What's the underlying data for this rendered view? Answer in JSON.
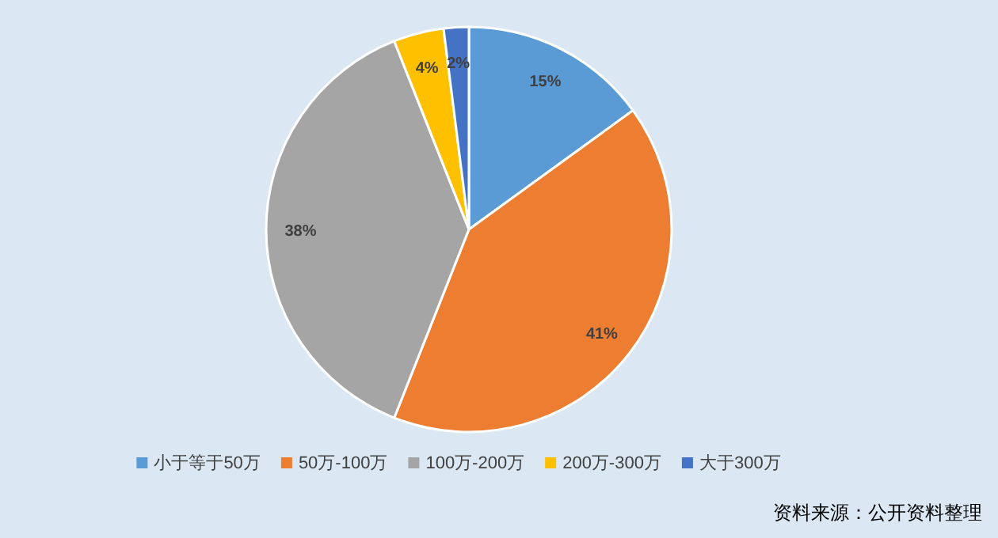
{
  "chart_data": {
    "type": "pie",
    "categories": [
      "小于等于50万",
      "50万-100万",
      "100万-200万",
      "200万-300万",
      "大于300万"
    ],
    "values": [
      15,
      41,
      38,
      4,
      2
    ],
    "value_labels": [
      "15%",
      "41%",
      "38%",
      "4%",
      "2%"
    ],
    "colors": [
      "#5b9bd5",
      "#ed7d31",
      "#a5a5a5",
      "#ffc000",
      "#4472c4"
    ],
    "legend": "bottom",
    "annotations": [
      "资料来源：公开资料整理"
    ]
  }
}
